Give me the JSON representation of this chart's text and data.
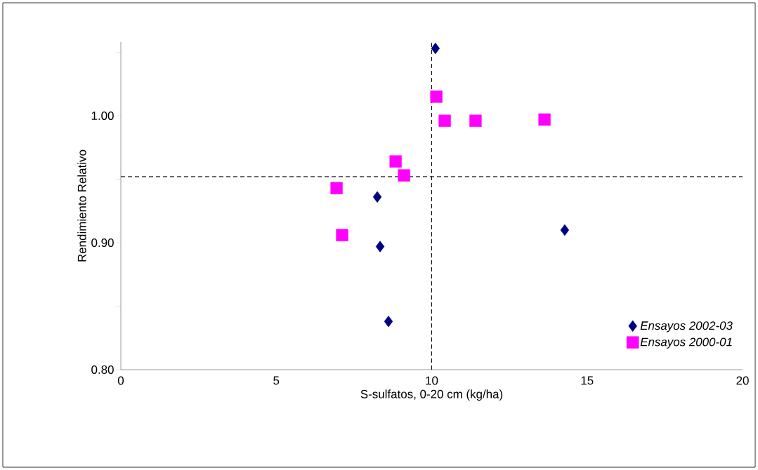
{
  "chart_data": {
    "type": "scatter",
    "xlabel": "S-sulfatos, 0-20 cm (kg/ha)",
    "ylabel": "Rendimiento Relativo",
    "series": [
      {
        "name": "Ensayos 2002-03",
        "color": "#000080",
        "marker": "diamond",
        "x": [
          10.12,
          8.25,
          8.34,
          8.61,
          14.28
        ],
        "values": [
          1.053,
          0.936,
          0.897,
          0.838,
          0.91
        ]
      },
      {
        "name": "Ensayos 2000-01",
        "color": "#ff00ff",
        "marker": "square",
        "x": [
          10.15,
          10.42,
          11.41,
          13.63,
          8.84,
          9.11,
          6.94,
          7.12
        ],
        "values": [
          1.015,
          0.996,
          0.996,
          0.997,
          0.964,
          0.953,
          0.943,
          0.906
        ]
      }
    ],
    "xlim": [
      0,
      20
    ],
    "xticks": [
      0,
      5,
      10,
      15,
      20
    ],
    "ylim": [
      0.8,
      1.058
    ],
    "yticks": [
      {
        "value": 0.8,
        "label": "0.80"
      },
      {
        "value": 0.85,
        "label": null
      },
      {
        "value": 0.9,
        "label": "0.90"
      },
      {
        "value": 0.95,
        "label": null
      },
      {
        "value": 1.0,
        "label": "1.00"
      },
      {
        "value": 1.05,
        "label": null
      }
    ],
    "ref_lines": [
      {
        "axis": "x",
        "value": 10,
        "line_style": "dashed"
      },
      {
        "axis": "y",
        "value": 0.952,
        "line_style": "dashed"
      }
    ],
    "legend": "bottom right",
    "grid": false
  }
}
